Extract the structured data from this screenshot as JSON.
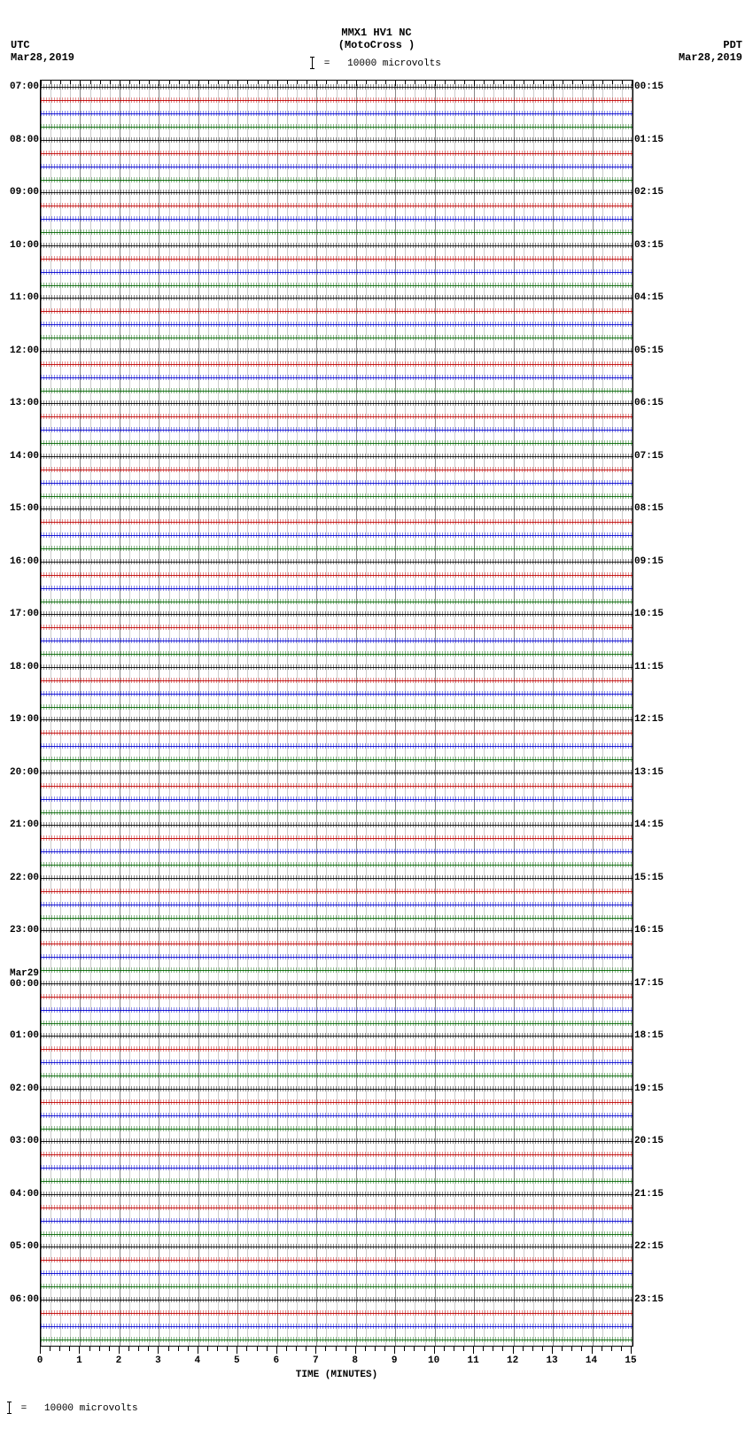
{
  "header": {
    "title_line1": "MMX1 HV1 NC",
    "title_line2": "(MotoCross )",
    "scale_text": "=   10000 microvolts",
    "left_tz": "UTC",
    "left_date": "Mar28,2019",
    "right_tz": "PDT",
    "right_date": "Mar28,2019"
  },
  "x_axis": {
    "title": "TIME (MINUTES)",
    "min": 0,
    "max": 15,
    "major_step": 1,
    "minor_per_major": 4
  },
  "plot": {
    "trace_colors": [
      "#000000",
      "#c00000",
      "#0000d0",
      "#006400"
    ],
    "grid_major_color": "#888888",
    "grid_minor_color": "#cccccc",
    "background": "#ffffff",
    "row_count": 96,
    "hours": 24
  },
  "left_labels": [
    {
      "row": 0,
      "text": "07:00"
    },
    {
      "row": 4,
      "text": "08:00"
    },
    {
      "row": 8,
      "text": "09:00"
    },
    {
      "row": 12,
      "text": "10:00"
    },
    {
      "row": 16,
      "text": "11:00"
    },
    {
      "row": 20,
      "text": "12:00"
    },
    {
      "row": 24,
      "text": "13:00"
    },
    {
      "row": 28,
      "text": "14:00"
    },
    {
      "row": 32,
      "text": "15:00"
    },
    {
      "row": 36,
      "text": "16:00"
    },
    {
      "row": 40,
      "text": "17:00"
    },
    {
      "row": 44,
      "text": "18:00"
    },
    {
      "row": 48,
      "text": "19:00"
    },
    {
      "row": 52,
      "text": "20:00"
    },
    {
      "row": 56,
      "text": "21:00"
    },
    {
      "row": 60,
      "text": "22:00"
    },
    {
      "row": 64,
      "text": "23:00"
    },
    {
      "row": 68,
      "text": "Mar29\n00:00"
    },
    {
      "row": 72,
      "text": "01:00"
    },
    {
      "row": 76,
      "text": "02:00"
    },
    {
      "row": 80,
      "text": "03:00"
    },
    {
      "row": 84,
      "text": "04:00"
    },
    {
      "row": 88,
      "text": "05:00"
    },
    {
      "row": 92,
      "text": "06:00"
    }
  ],
  "right_labels": [
    {
      "row": 0,
      "text": "00:15"
    },
    {
      "row": 4,
      "text": "01:15"
    },
    {
      "row": 8,
      "text": "02:15"
    },
    {
      "row": 12,
      "text": "03:15"
    },
    {
      "row": 16,
      "text": "04:15"
    },
    {
      "row": 20,
      "text": "05:15"
    },
    {
      "row": 24,
      "text": "06:15"
    },
    {
      "row": 28,
      "text": "07:15"
    },
    {
      "row": 32,
      "text": "08:15"
    },
    {
      "row": 36,
      "text": "09:15"
    },
    {
      "row": 40,
      "text": "10:15"
    },
    {
      "row": 44,
      "text": "11:15"
    },
    {
      "row": 48,
      "text": "12:15"
    },
    {
      "row": 52,
      "text": "13:15"
    },
    {
      "row": 56,
      "text": "14:15"
    },
    {
      "row": 60,
      "text": "15:15"
    },
    {
      "row": 64,
      "text": "16:15"
    },
    {
      "row": 68,
      "text": "17:15"
    },
    {
      "row": 72,
      "text": "18:15"
    },
    {
      "row": 76,
      "text": "19:15"
    },
    {
      "row": 80,
      "text": "20:15"
    },
    {
      "row": 84,
      "text": "21:15"
    },
    {
      "row": 88,
      "text": "22:15"
    },
    {
      "row": 92,
      "text": "23:15"
    }
  ],
  "footer": {
    "text": "=   10000 microvolts"
  }
}
